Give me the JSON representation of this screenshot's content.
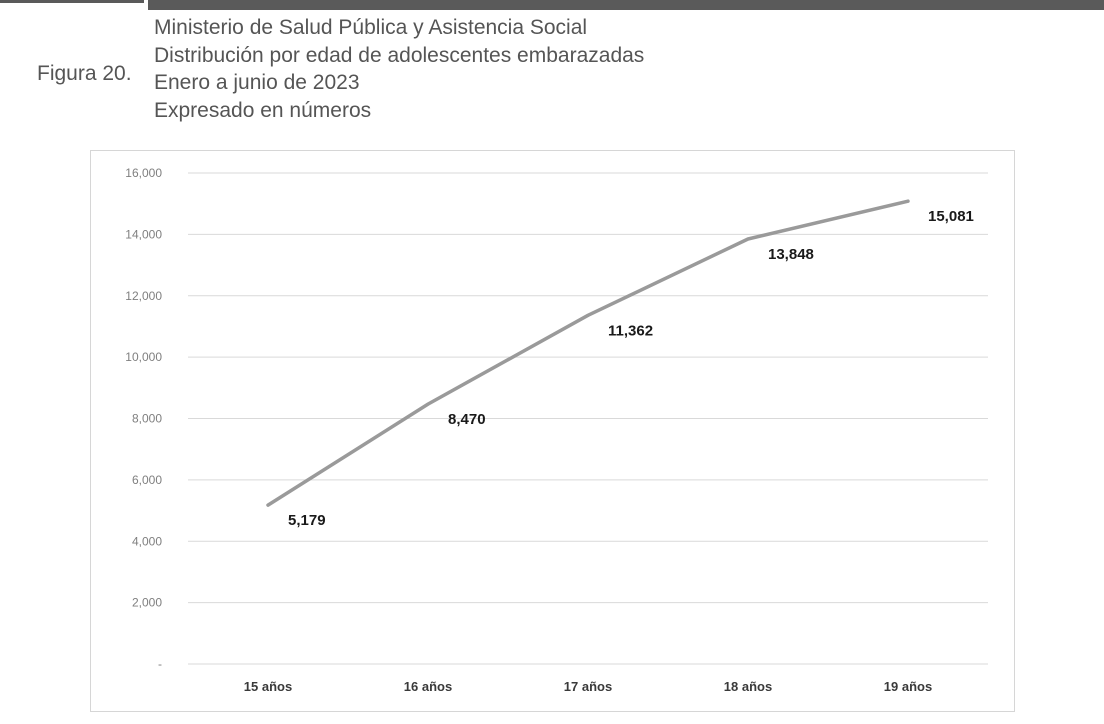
{
  "figure_label": "Figura 20.",
  "heading": {
    "line1": "Ministerio de Salud Pública y Asistencia Social",
    "line2": "Distribución por edad de adolescentes embarazadas",
    "line3": "Enero a junio de 2023",
    "line4": "Expresado en números"
  },
  "colors": {
    "line": "#9a9a9a",
    "grid": "#d9d9d9",
    "tick_text": "#7f7f7f",
    "label_text": "#1a1a1a"
  },
  "chart_data": {
    "type": "line",
    "categories": [
      "15 años",
      "16 años",
      "17 años",
      "18 años",
      "19 años"
    ],
    "series": [
      {
        "values": [
          5179,
          8470,
          11362,
          13848,
          15081
        ]
      }
    ],
    "data_labels": [
      "5,179",
      "8,470",
      "11,362",
      "13,848",
      "15,081"
    ],
    "ylim": [
      0,
      16000
    ],
    "y_ticks": [
      0,
      2000,
      4000,
      6000,
      8000,
      10000,
      12000,
      14000,
      16000
    ],
    "y_tick_labels": [
      "-",
      "2,000",
      "4,000",
      "6,000",
      "8,000",
      "10,000",
      "12,000",
      "14,000",
      "16,000"
    ],
    "grid": true,
    "legend": "none",
    "title": "",
    "xlabel": "",
    "ylabel": ""
  }
}
